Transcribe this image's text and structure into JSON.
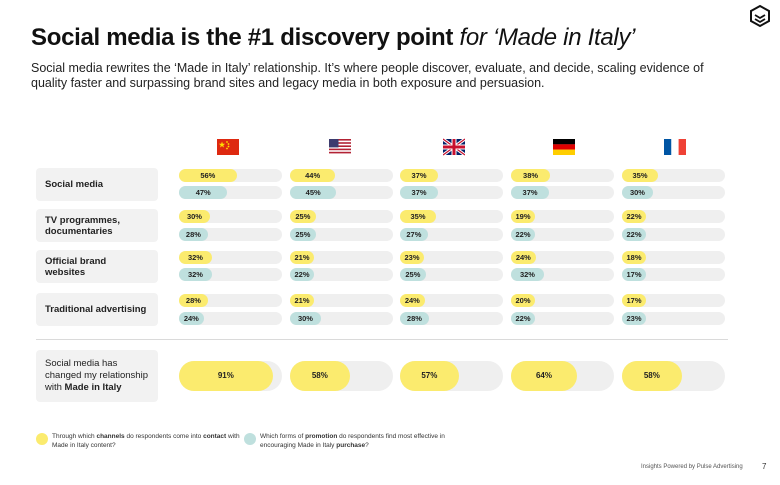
{
  "header": {
    "title_bold": "Social media is the #1 discovery point",
    "title_italic": "for ‘Made in Italy’",
    "subtitle": "Social media rewrites the ‘Made in Italy’ relationship. It’s where people discover, evaluate, and decide, scaling evidence of quality faster and surpassing brand sites and legacy media in both exposure and persuasion."
  },
  "chart_data": {
    "type": "bar",
    "title": "Social media is the #1 discovery point for ‘Made in Italy’",
    "countries": [
      "China",
      "United States",
      "United Kingdom",
      "Germany",
      "France"
    ],
    "flag_icons": [
      "china-flag-icon",
      "usa-flag-icon",
      "uk-flag-icon",
      "germany-flag-icon",
      "france-flag-icon"
    ],
    "categories": [
      "Social media",
      "TV programmes, documentaries",
      "Official brand websites",
      "Traditional advertising"
    ],
    "series": [
      {
        "name": "Through which channels do respondents come into contact with Made in Italy content?",
        "color": "#fbeb6e",
        "values": [
          [
            56,
            44,
            37,
            38,
            35
          ],
          [
            30,
            25,
            35,
            19,
            22
          ],
          [
            32,
            21,
            23,
            24,
            18
          ],
          [
            28,
            21,
            24,
            20,
            17
          ]
        ]
      },
      {
        "name": "Which forms of promotion do respondents find most effective in encouraging Made in Italy purchase?",
        "color": "#bfe0de",
        "values": [
          [
            47,
            45,
            37,
            37,
            30
          ],
          [
            28,
            25,
            27,
            22,
            22
          ],
          [
            32,
            22,
            25,
            32,
            17
          ],
          [
            24,
            30,
            28,
            22,
            23
          ]
        ]
      }
    ],
    "summary_row": {
      "label": "Social media has changed my relationship with Made in Italy",
      "values": [
        91,
        58,
        57,
        64,
        58
      ],
      "color": "#fbeb6e"
    },
    "value_suffix": "%",
    "xlim": [
      0,
      100
    ]
  },
  "rows": {
    "social": "Social media",
    "tv_line1": "TV programmes,",
    "tv_line2": "documentaries",
    "web_line1": "Official brand",
    "web_line2": "websites",
    "adv": "Traditional advertising",
    "summary_line1": "Social media has",
    "summary_line2": "changed my relationship",
    "summary_line3a": "with",
    "summary_line3b": "Made in Italy"
  },
  "legend": {
    "channels_pre": "Through which",
    "channels_bold": "channels",
    "channels_mid": "do respondents come into",
    "channels_bold2": "contact",
    "channels_post": "with Made in Italy content?",
    "promotion_pre": "Which forms of",
    "promotion_bold": "promotion",
    "promotion_mid": "do respondents find most effective in encouraging Made in Italy",
    "promotion_bold2": "purchase",
    "promotion_post": "?"
  },
  "footer": {
    "source": "Insights Powered by Pulse Advertising",
    "page": "7"
  },
  "colors": {
    "channels": "#fbeb6e",
    "promotion": "#bfe0de",
    "track": "#efefef"
  }
}
